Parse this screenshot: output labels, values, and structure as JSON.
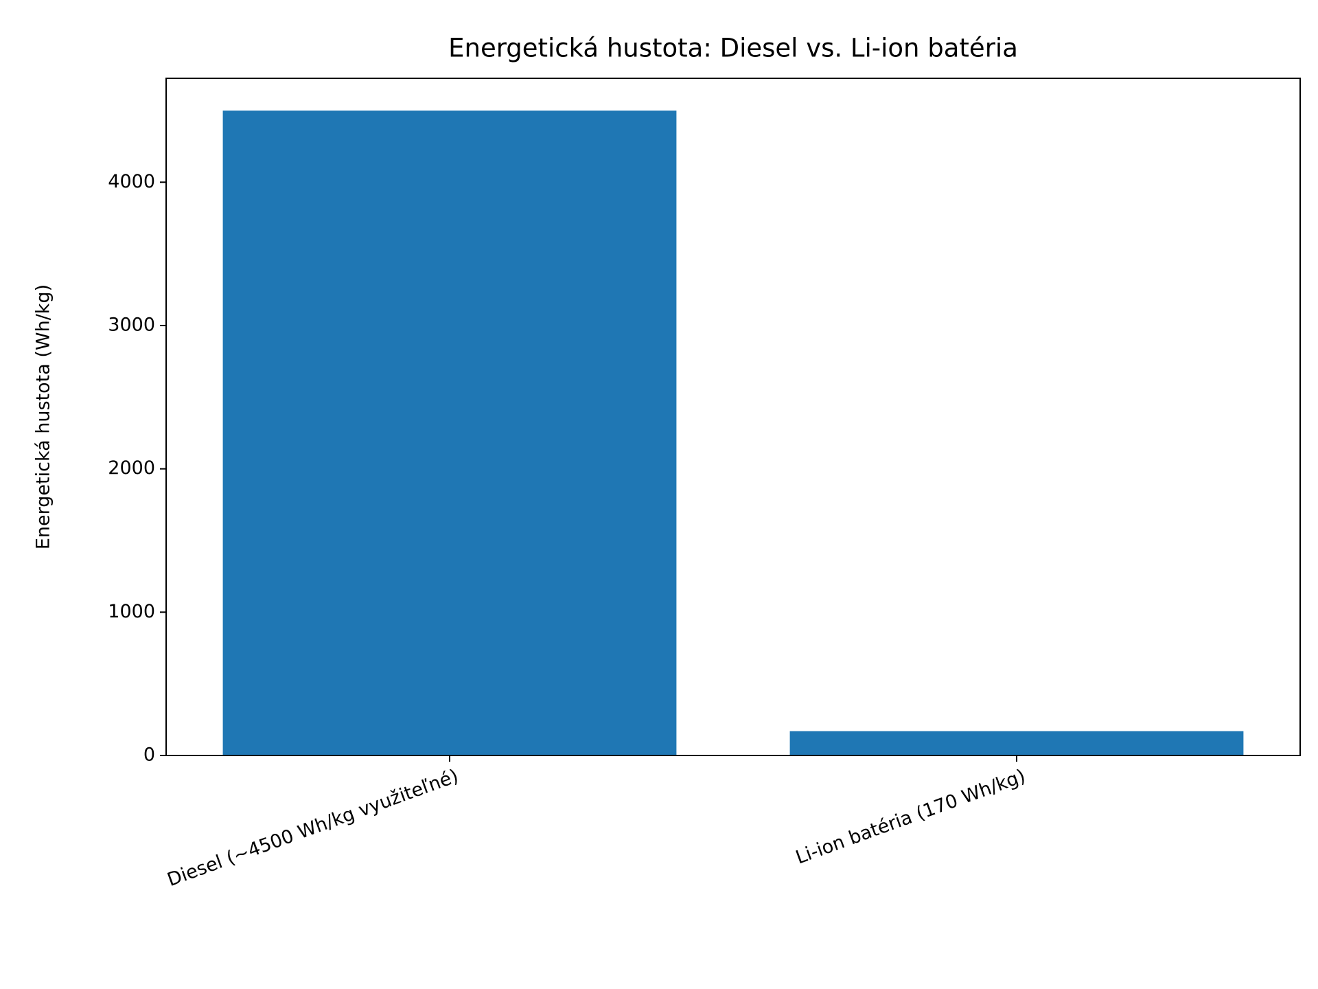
{
  "chart_data": {
    "type": "bar",
    "title": "Energetická hustota: Diesel vs. Li-ion batéria",
    "y_label": "Energetická hustota (Wh/kg)",
    "categories": [
      "Diesel (~4500 Wh/kg využiteľné)",
      "Li-ion batéria (170 Wh/kg)"
    ],
    "values": [
      4500,
      170
    ],
    "color": "#1f77b4",
    "ylim": [
      0,
      4725
    ],
    "yticks": [
      0,
      1000,
      2000,
      3000,
      4000
    ],
    "grid": false
  }
}
